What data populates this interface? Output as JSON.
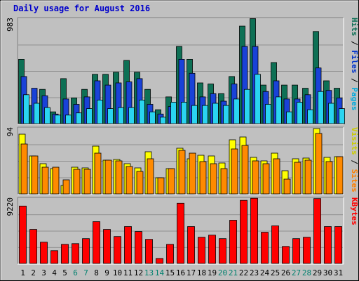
{
  "chart_data": {
    "type": "bar",
    "title": "Daily usage for August 2016",
    "days": [
      "1",
      "2",
      "3",
      "4",
      "5",
      "6",
      "7",
      "8",
      "9",
      "10",
      "11",
      "12",
      "13",
      "14",
      "15",
      "16",
      "17",
      "18",
      "19",
      "20",
      "21",
      "22",
      "23",
      "24",
      "25",
      "26",
      "27",
      "28",
      "29",
      "30",
      "31"
    ],
    "weekend_days": [
      "6",
      "7",
      "13",
      "14",
      "20",
      "21",
      "27",
      "28"
    ],
    "colors": {
      "frame_bg": "#c0c0c0",
      "title": "#0000cc",
      "weekday_label": "#000000",
      "weekend_label": "#00806e",
      "hits": "#0e7055",
      "files": "#1942d8",
      "pages": "#2ad4f0",
      "visits": "#ffff00",
      "sites": "#ff8a00",
      "kbytes": "#ff0000",
      "vlabel_pages": "#00aadd",
      "vlabel_files": "#0033cc",
      "vlabel_hits": "#0e7055",
      "vlabel_sites": "#ff8000",
      "vlabel_visits": "#cccc00",
      "vlabel_kbytes": "#ff0000",
      "vlabel_sep": "#000000"
    },
    "panels": [
      {
        "scale_label": "983",
        "ymax": 983,
        "series": [
          {
            "name": "Hits",
            "values": [
              600,
              170,
              320,
              110,
              420,
              240,
              320,
              460,
              460,
              480,
              590,
              480,
              320,
              130,
              250,
              720,
              600,
              380,
              370,
              280,
              440,
              910,
              980,
              360,
              570,
              360,
              360,
              330,
              860,
              400,
              330
            ]
          },
          {
            "name": "Files",
            "values": [
              440,
              330,
              260,
              90,
              230,
              180,
              250,
              400,
              360,
              380,
              390,
              420,
              180,
              90,
              160,
              600,
              470,
              250,
              280,
              210,
              370,
              720,
              720,
              300,
              400,
              230,
              230,
              270,
              520,
              310,
              240
            ]
          },
          {
            "name": "Pages",
            "values": [
              270,
              190,
              150,
              80,
              80,
              100,
              140,
              220,
              140,
              150,
              150,
              220,
              110,
              60,
              200,
              200,
              170,
              170,
              190,
              170,
              230,
              320,
              460,
              180,
              250,
              110,
              200,
              130,
              300,
              190,
              140
            ]
          }
        ],
        "labels": [
          {
            "text": "Pages",
            "color": "vlabel_pages"
          },
          {
            "text": " / ",
            "color": "vlabel_sep"
          },
          {
            "text": "Files",
            "color": "vlabel_files"
          },
          {
            "text": " / ",
            "color": "vlabel_sep"
          },
          {
            "text": "Hits",
            "color": "vlabel_hits"
          }
        ]
      },
      {
        "scale_label": "94",
        "ymax": 94,
        "series": [
          {
            "name": "Visits",
            "values": [
              85,
              54,
              43,
              36,
              12,
              38,
              37,
              68,
              48,
              49,
              43,
              37,
              60,
              23,
              36,
              65,
              50,
              55,
              54,
              44,
              77,
              81,
              52,
              47,
              58,
              33,
              50,
              51,
              93,
              52,
              53
            ]
          },
          {
            "name": "Sites",
            "values": [
              71,
              54,
              38,
              38,
              20,
              35,
              35,
              58,
              48,
              47,
              39,
              32,
              50,
              23,
              36,
              62,
              58,
              46,
              43,
              36,
              64,
              69,
              47,
              43,
              50,
              21,
              45,
              48,
              86,
              46,
              53
            ]
          }
        ],
        "labels": [
          {
            "text": "Sites",
            "color": "vlabel_sites"
          },
          {
            "text": " / ",
            "color": "vlabel_sep"
          },
          {
            "text": "Visits",
            "color": "vlabel_visits"
          }
        ]
      },
      {
        "scale_label": "9220",
        "ymax": 9220,
        "series": [
          {
            "name": "KBytes",
            "values": [
              8100,
              4800,
              3000,
              1800,
              2700,
              2800,
              3500,
              5900,
              4800,
              3800,
              5200,
              4500,
              3400,
              700,
              2700,
              8500,
              5200,
              3700,
              4000,
              3500,
              6100,
              8900,
              9200,
              4400,
              5300,
              2400,
              3500,
              3700,
              9150,
              5200,
              5200
            ]
          }
        ],
        "labels": [
          {
            "text": "KBytes",
            "color": "vlabel_kbytes"
          }
        ]
      }
    ]
  }
}
